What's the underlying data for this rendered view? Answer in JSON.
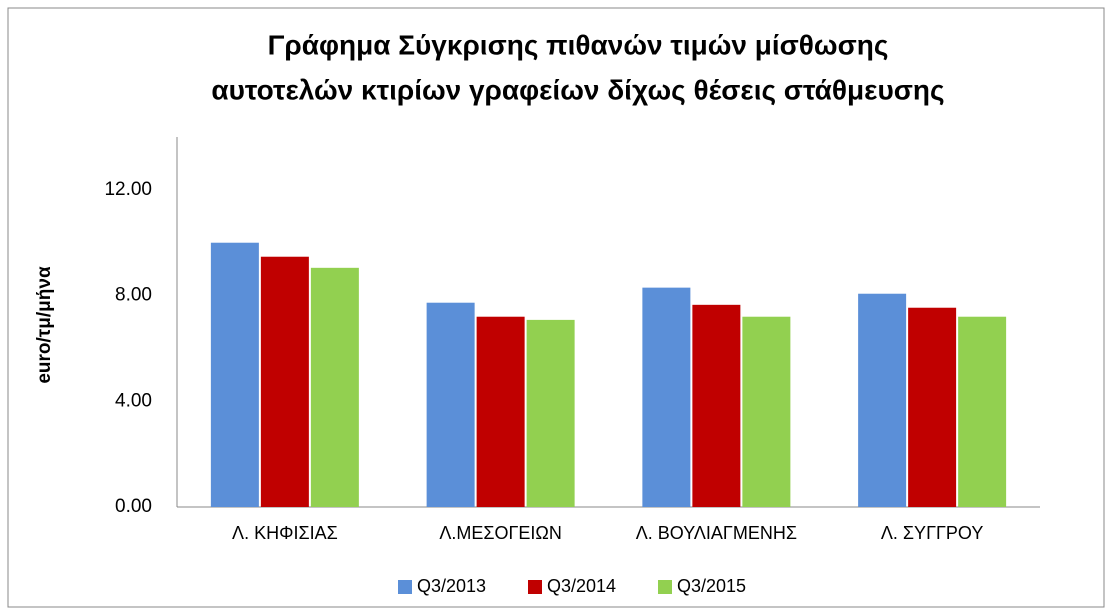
{
  "chart_data": {
    "type": "bar",
    "title": [
      "Γράφημα Σύγκρισης πιθανών τιμών μίσθωσης",
      "αυτοτελών κτιρίων γραφείων δίχως θέσεις στάθμευσης"
    ],
    "y_label": "euro/τμ/μήνα",
    "categories": [
      "Λ. ΚΗΦΙΣΙΑΣ",
      "Λ.ΜΕΣΟΓΕΙΩΝ",
      "Λ. ΒΟΥΛΙΑΓΜΕΝΗΣ",
      "Λ. ΣΥΓΓΡΟΥ"
    ],
    "series": [
      {
        "name": "Q3/2013",
        "color": "#5b8fd8",
        "values": [
          10.0,
          7.73,
          8.3,
          8.07
        ]
      },
      {
        "name": "Q3/2014",
        "color": "#c00000",
        "values": [
          9.47,
          7.2,
          7.65,
          7.54
        ]
      },
      {
        "name": "Q3/2015",
        "color": "#92d050",
        "values": [
          9.05,
          7.08,
          7.2,
          7.2
        ]
      }
    ],
    "ylim": [
      0,
      14
    ],
    "yticks": [
      {
        "value": 0,
        "label": "0.00"
      },
      {
        "value": 4,
        "label": "4.00"
      },
      {
        "value": 8,
        "label": "8.00"
      },
      {
        "value": 12,
        "label": "12.00"
      }
    ],
    "grid": false,
    "legend": "bottom"
  }
}
